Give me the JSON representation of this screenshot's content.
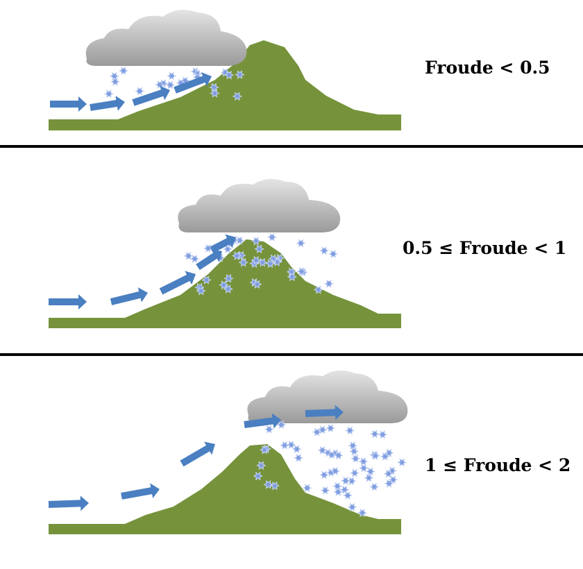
{
  "panels": [
    {
      "label": "Froude < 0.5"
    },
    {
      "label": "0.5 ≤ Froude < 1"
    },
    {
      "label": "1 ≤ Froude < 2"
    }
  ],
  "colors": {
    "mountain": "#76933c",
    "arrow": "#4a7fc1",
    "cloud_top": "#e2e2e2",
    "cloud_bottom": "#9a9a9a",
    "snow": "#7f9de0",
    "separator": "#000000"
  }
}
